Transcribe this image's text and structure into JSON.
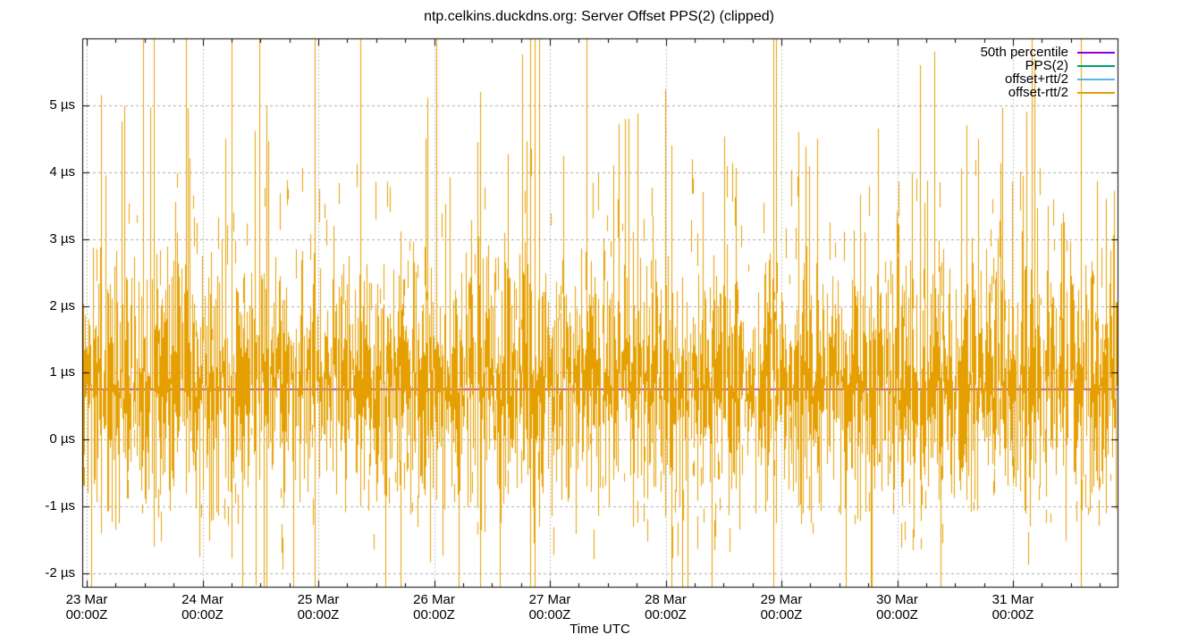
{
  "title": "ntp.celkins.duckdns.org: Server Offset PPS(2) (clipped)",
  "xlabel": "Time UTC",
  "legend": {
    "entries": [
      {
        "label": "50th percentile",
        "color": "#9400D3"
      },
      {
        "label": "PPS(2)",
        "color": "#009E73"
      },
      {
        "label": "offset+rtt/2",
        "color": "#56B4E9"
      },
      {
        "label": "offset-rtt/2",
        "color": "#E69F00"
      }
    ]
  },
  "colors": {
    "background": "#ffffff",
    "border": "#000000",
    "grid": "#ababab",
    "median": "#9400D3",
    "noise": "#E69F00"
  },
  "chart_data": {
    "type": "line",
    "title": "ntp.celkins.duckdns.org: Server Offset PPS(2) (clipped)",
    "xlabel": "Time UTC",
    "ylabel": "",
    "ylim": [
      -2.2,
      6.0
    ],
    "grid": true,
    "legend_position": "top-right-inside",
    "y_ticks": [
      {
        "value": 5,
        "label": "5 µs"
      },
      {
        "value": 4,
        "label": "4 µs"
      },
      {
        "value": 3,
        "label": "3 µs"
      },
      {
        "value": 2,
        "label": "2 µs"
      },
      {
        "value": 1,
        "label": "1 µs"
      },
      {
        "value": 0,
        "label": "0 µs"
      },
      {
        "value": -1,
        "label": "-1 µs"
      },
      {
        "value": -2,
        "label": "-2 µs"
      }
    ],
    "x_ticks": [
      {
        "day": 0,
        "date": "23 Mar",
        "time": "00:00Z"
      },
      {
        "day": 1,
        "date": "24 Mar",
        "time": "00:00Z"
      },
      {
        "day": 2,
        "date": "25 Mar",
        "time": "00:00Z"
      },
      {
        "day": 3,
        "date": "26 Mar",
        "time": "00:00Z"
      },
      {
        "day": 4,
        "date": "27 Mar",
        "time": "00:00Z"
      },
      {
        "day": 5,
        "date": "28 Mar",
        "time": "00:00Z"
      },
      {
        "day": 6,
        "date": "29 Mar",
        "time": "00:00Z"
      },
      {
        "day": 7,
        "date": "30 Mar",
        "time": "00:00Z"
      },
      {
        "day": 8,
        "date": "31 Mar",
        "time": "00:00Z"
      }
    ],
    "x_minor_tick_days": 0.25,
    "x_span_days": [
      -0.04,
      8.9
    ],
    "series": [
      {
        "name": "50th percentile",
        "color": "#9400D3",
        "type": "constant",
        "value_us": 0.75
      },
      {
        "name": "PPS(2)",
        "color": "#009E73",
        "type": "noise",
        "note": "fully overplotted by offset-rtt/2 trace"
      },
      {
        "name": "offset+rtt/2",
        "color": "#56B4E9",
        "type": "noise",
        "note": "fully overplotted by offset-rtt/2 trace"
      },
      {
        "name": "offset-rtt/2",
        "color": "#E69F00",
        "type": "impulse-noise",
        "model": {
          "seed": 20240323,
          "median_us": 0.85,
          "jitter_us": 0.5,
          "span_us": 1.6,
          "gap_prob": 0.1,
          "up_spike_prob": 0.11,
          "up_spike_extra_us": 3.6,
          "top_clip_prob": 0.012,
          "down_spike_prob": 0.09,
          "down_spike_extra_us": 2.2,
          "bottom_clip_prob": 0.012,
          "upper_speckle_prob": 0.15,
          "lower_speckle_prob": 0.1
        },
        "forced_spikes": [
          {
            "day": 0.12,
            "hi": 5.15,
            "lo": -1.4
          },
          {
            "day": 0.58,
            "hi": 6.3,
            "lo": -1.6
          },
          {
            "day": 0.86,
            "hi": 6.3,
            "lo": -0.8
          },
          {
            "day": 1.2,
            "hi": 4.5,
            "lo": -0.5
          },
          {
            "day": 1.49,
            "hi": 6.3,
            "lo": -0.6
          },
          {
            "day": 1.55,
            "hi": 5.0,
            "lo": -2.3
          },
          {
            "day": 1.97,
            "hi": 6.3,
            "lo": -2.3
          },
          {
            "day": 2.36,
            "hi": 6.3,
            "lo": -1.0
          },
          {
            "day": 2.93,
            "hi": 4.5,
            "lo": -0.4
          },
          {
            "day": 3.02,
            "hi": 6.3,
            "lo": -0.9
          },
          {
            "day": 3.4,
            "hi": 5.2,
            "lo": -2.3
          },
          {
            "day": 3.83,
            "hi": 6.3,
            "lo": -2.3
          },
          {
            "day": 3.87,
            "hi": 6.3,
            "lo": -2.3
          },
          {
            "day": 3.91,
            "hi": 6.3,
            "lo": -1.3
          },
          {
            "day": 4.32,
            "hi": 6.3,
            "lo": -0.7
          },
          {
            "day": 4.55,
            "hi": 4.1,
            "lo": -0.6
          },
          {
            "day": 5.05,
            "hi": 4.4,
            "lo": -2.3
          },
          {
            "day": 5.93,
            "hi": 6.3,
            "lo": -2.3
          },
          {
            "day": 6.15,
            "hi": 4.6,
            "lo": -1.0
          },
          {
            "day": 6.31,
            "hi": 4.5,
            "lo": -0.5
          },
          {
            "day": 7.2,
            "hi": 5.6,
            "lo": -0.6
          },
          {
            "day": 7.6,
            "hi": 4.7,
            "lo": -0.9
          },
          {
            "day": 8.59,
            "hi": 6.3,
            "lo": -2.3
          },
          {
            "day": 8.8,
            "hi": 3.6,
            "lo": -1.1
          }
        ]
      }
    ]
  }
}
